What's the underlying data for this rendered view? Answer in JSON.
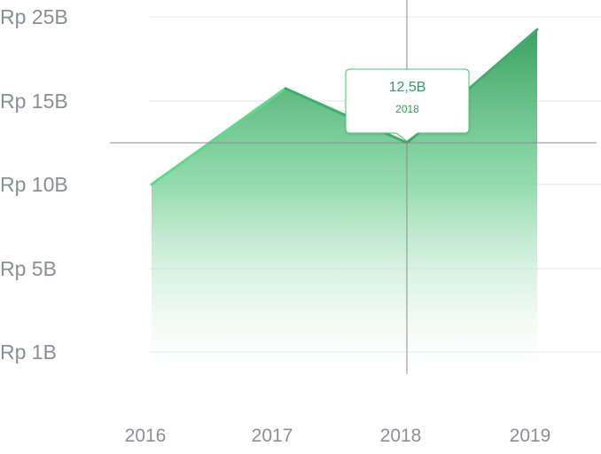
{
  "chart_data": {
    "type": "area",
    "title": "",
    "xlabel": "",
    "ylabel": "",
    "categories": [
      "2016",
      "2017",
      "2018",
      "2019"
    ],
    "values": [
      10,
      16.5,
      12.5,
      23.5
    ],
    "y_ticks": [
      {
        "label": "Rp 25B",
        "value": 25
      },
      {
        "label": "Rp 15B",
        "value": 15
      },
      {
        "label": "Rp 10B",
        "value": 10
      },
      {
        "label": "Rp 5B",
        "value": 5
      },
      {
        "label": "Rp 1B",
        "value": 1
      }
    ],
    "grid": true,
    "tooltip": {
      "value_label": "12,5B",
      "category": "2018",
      "value": 12.5
    },
    "colors": {
      "line": "#4cc57a",
      "fill_top": "#3ea864",
      "fill_bottom": "#ffffff",
      "grid": "#e6e6e6",
      "crosshair": "#8c8c8c",
      "text": "#8a8f95",
      "tooltip_text": "#2e9e5b"
    }
  }
}
